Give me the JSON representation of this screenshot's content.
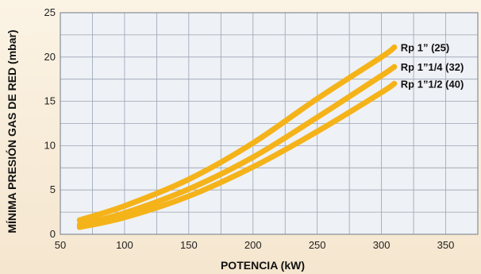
{
  "chart_data": {
    "type": "line",
    "xlabel": "POTENCIA (kW)",
    "ylabel": "MÍNIMA PRESIÓN GAS DE RED (mbar)",
    "xlim": [
      50,
      375
    ],
    "ylim": [
      0,
      25
    ],
    "x_ticks": [
      50,
      100,
      150,
      200,
      250,
      300,
      350
    ],
    "y_ticks": [
      0,
      5,
      10,
      15,
      20,
      25
    ],
    "grid": true,
    "line_color": "#f5b31a",
    "series": [
      {
        "name": "Rp 1” (25)",
        "x": [
          65,
          100,
          150,
          200,
          250,
          300,
          310
        ],
        "y": [
          1.6,
          3.2,
          6.2,
          10.3,
          15.3,
          20.0,
          21.1
        ]
      },
      {
        "name": "Rp 1”1/4 (32)",
        "x": [
          65,
          100,
          150,
          200,
          250,
          300,
          310
        ],
        "y": [
          1.1,
          2.4,
          5.1,
          8.7,
          13.2,
          17.9,
          18.9
        ]
      },
      {
        "name": "Rp 1”1/2 (40)",
        "x": [
          65,
          100,
          150,
          200,
          250,
          300,
          310
        ],
        "y": [
          0.8,
          1.9,
          4.3,
          7.6,
          11.6,
          16.0,
          17.0
        ]
      }
    ]
  }
}
